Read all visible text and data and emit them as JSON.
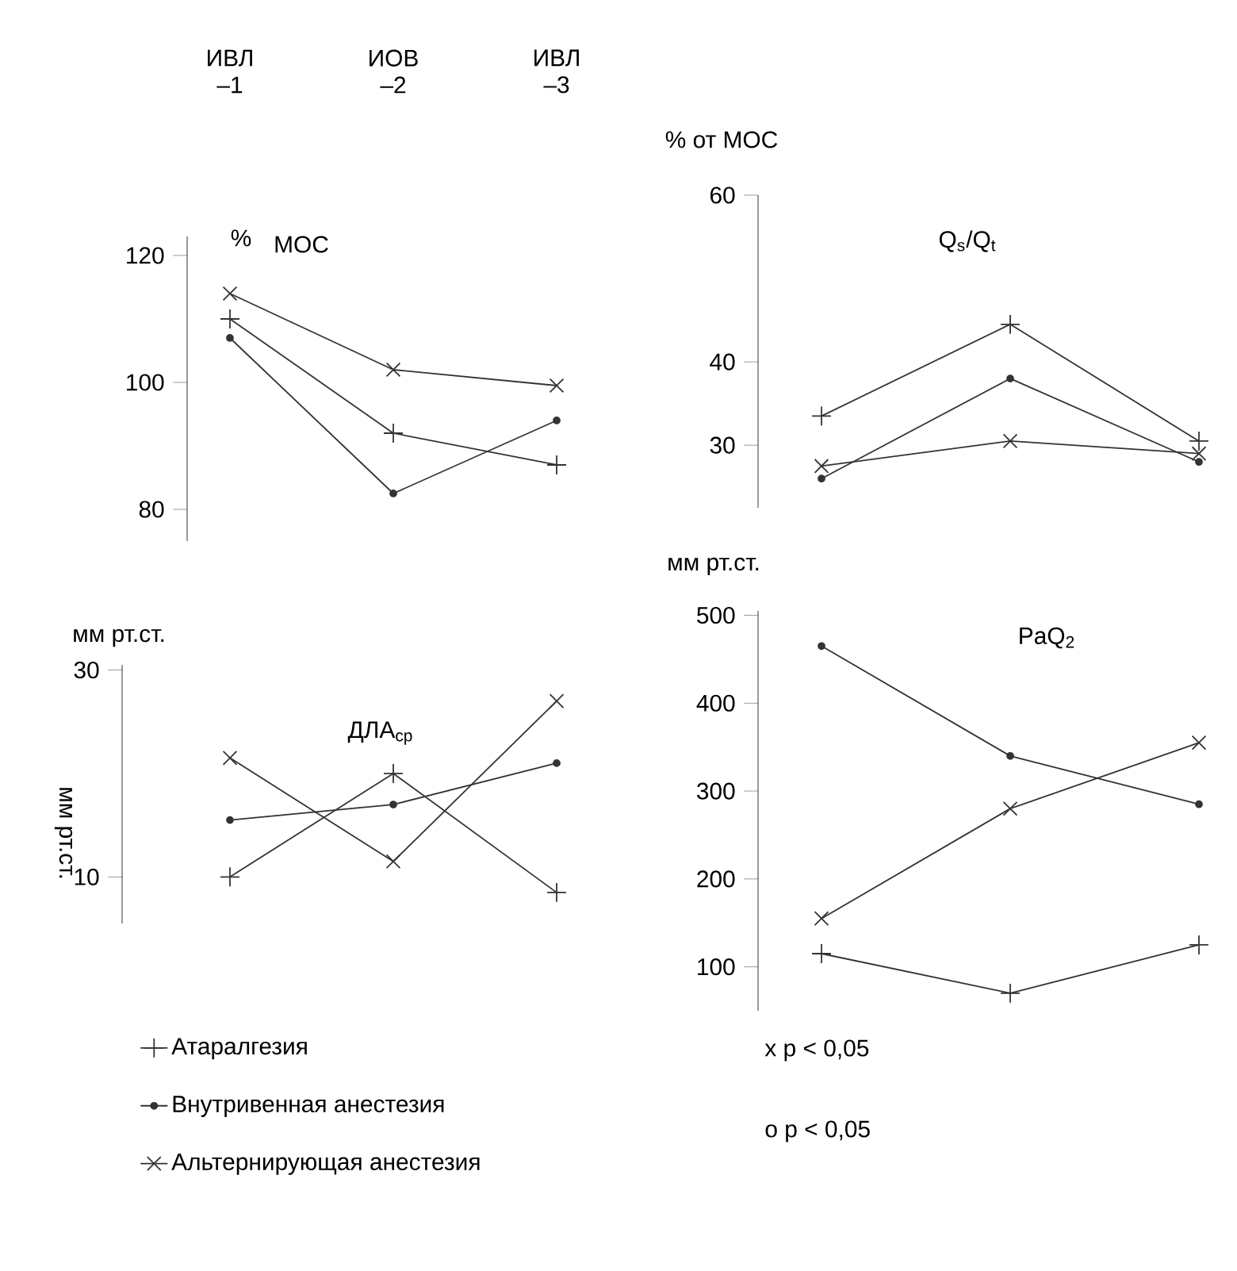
{
  "chart_data": [
    {
      "type": "line",
      "title": "МОС",
      "ylabel": "%",
      "categories": [
        "ИВЛ –1",
        "ИОВ –2",
        "ИВЛ –3"
      ],
      "ylim": [
        75,
        123
      ],
      "yticks": [
        80,
        100,
        120
      ],
      "series": [
        {
          "color": "#333333",
          "marker": "plus",
          "values": [
            110,
            92,
            87
          ]
        },
        {
          "color": "#333333",
          "marker": "circle",
          "values": [
            107,
            82.5,
            94
          ]
        },
        {
          "color": "#333333",
          "marker": "cross",
          "values": [
            114,
            102,
            99.5
          ]
        }
      ]
    },
    {
      "type": "line",
      "title": "Q$_{s}$/Q$_{t}$",
      "ylabel": "% от МОС",
      "categories": [
        null,
        null,
        null
      ],
      "tick_labels": "y",
      "ylim": [
        22.5,
        60
      ],
      "yticks": [
        30,
        40,
        60
      ],
      "series": [
        {
          "color": "#333333",
          "marker": "plus",
          "values": [
            33.5,
            44.5,
            30.5
          ]
        },
        {
          "color": "#333333",
          "marker": "circle",
          "values": [
            26,
            38,
            28
          ]
        },
        {
          "color": "#333333",
          "marker": "cross",
          "values": [
            27.5,
            30.5,
            29
          ]
        }
      ]
    },
    {
      "type": "line",
      "title": "ДЛА$_{ср}$",
      "ylabel": "мм рт.ст.",
      "annotations": [
        "мм рт.ст."
      ],
      "categories": [
        null,
        null,
        null
      ],
      "tick_labels": "y",
      "ylim": [
        5.5,
        30.5
      ],
      "yticks": [
        10,
        30
      ],
      "legend": "bottom",
      "series": [
        {
          "name": "Атаралгезия",
          "color": "#333333",
          "marker": "plus",
          "values": [
            10,
            20,
            8.5
          ]
        },
        {
          "name": "Внутривенная анестезия",
          "color": "#333333",
          "marker": "circle",
          "values": [
            15.5,
            17,
            21
          ]
        },
        {
          "name": "Альтернирующая анестезия",
          "color": "#333333",
          "marker": "cross",
          "values": [
            21.5,
            11.5,
            27
          ]
        }
      ]
    },
    {
      "type": "line",
      "title": "PaQ$_{2}$",
      "ylabel": "мм рт.ст.",
      "annotations": [
        "x p < 0,05",
        "o p < 0,05"
      ],
      "categories": [
        null,
        null,
        null
      ],
      "tick_labels": "y",
      "ylim": [
        50,
        505
      ],
      "yticks": [
        100,
        200,
        300,
        400,
        500
      ],
      "series": [
        {
          "color": "#333333",
          "marker": "plus",
          "values": [
            115,
            70,
            125
          ]
        },
        {
          "color": "#333333",
          "marker": "circle",
          "values": [
            465,
            340,
            285
          ]
        },
        {
          "color": "#333333",
          "marker": "cross",
          "values": [
            155,
            280,
            355
          ]
        }
      ]
    }
  ]
}
